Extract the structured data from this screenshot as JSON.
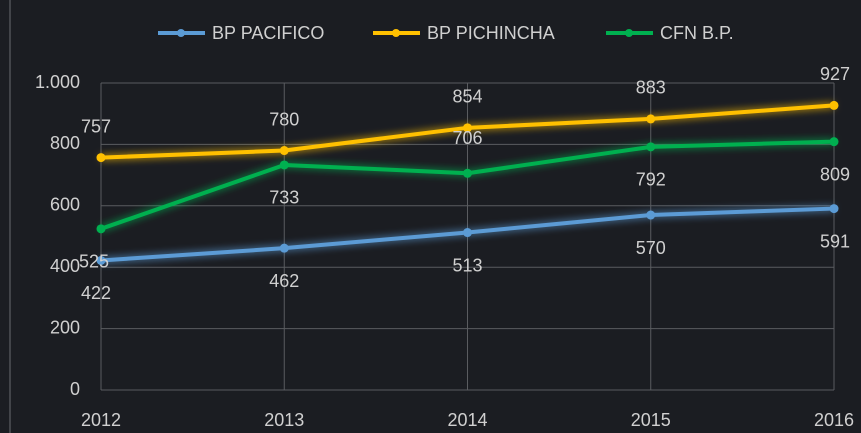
{
  "chart_data": {
    "type": "line",
    "x": [
      2012,
      2013,
      2014,
      2015,
      2016
    ],
    "xlim": [
      2012,
      2016
    ],
    "xticks": [
      2012,
      2013,
      2014,
      2015,
      2016
    ],
    "ylim": [
      0,
      1000
    ],
    "yticks": [
      0,
      200,
      400,
      600,
      800,
      {
        "value": 1000,
        "label": "1.000"
      }
    ],
    "grid": true,
    "legend": "top",
    "series": [
      {
        "name": "BP PACIFICO",
        "color": "#5b9bd5",
        "values": [
          422,
          462,
          513,
          570,
          591
        ]
      },
      {
        "name": "BP PICHINCHA",
        "color": "#ffc000",
        "values": [
          757,
          780,
          854,
          883,
          927
        ]
      },
      {
        "name": "CFN B.P.",
        "color": "#00b050",
        "values": [
          525,
          733,
          706,
          792,
          809
        ]
      }
    ]
  }
}
